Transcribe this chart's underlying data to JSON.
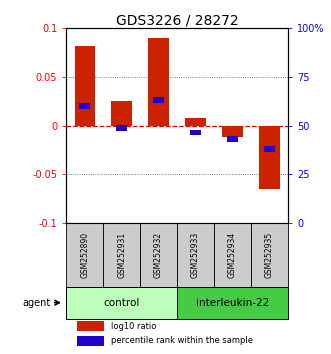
{
  "title": "GDS3226 / 28272",
  "samples": [
    "GSM252890",
    "GSM252931",
    "GSM252932",
    "GSM252933",
    "GSM252934",
    "GSM252935"
  ],
  "log10_ratio": [
    0.082,
    0.025,
    0.09,
    0.008,
    -0.012,
    -0.065
  ],
  "percentile_rank_pct": [
    60,
    49,
    63,
    46.5,
    43,
    38
  ],
  "ylim_left": [
    -0.1,
    0.1
  ],
  "ylim_right": [
    0,
    100
  ],
  "yticks_left": [
    -0.1,
    -0.05,
    0,
    0.05,
    0.1
  ],
  "yticks_right": [
    0,
    25,
    50,
    75,
    100
  ],
  "groups": [
    {
      "label": "control",
      "indices": [
        0,
        1,
        2
      ],
      "color": "#bbffbb"
    },
    {
      "label": "interleukin-22",
      "indices": [
        3,
        4,
        5
      ],
      "color": "#44cc44"
    }
  ],
  "bar_color_red": "#cc2200",
  "bar_color_blue": "#2200cc",
  "agent_label": "agent",
  "legend_red": "log10 ratio",
  "legend_blue": "percentile rank within the sample",
  "hline_color": "#dd0000",
  "dotted_color": "#555555",
  "bar_width": 0.55,
  "title_fontsize": 10,
  "tick_fontsize": 7,
  "sample_fontsize": 5.5,
  "group_fontsize": 7.5,
  "legend_fontsize": 6,
  "agent_fontsize": 7
}
